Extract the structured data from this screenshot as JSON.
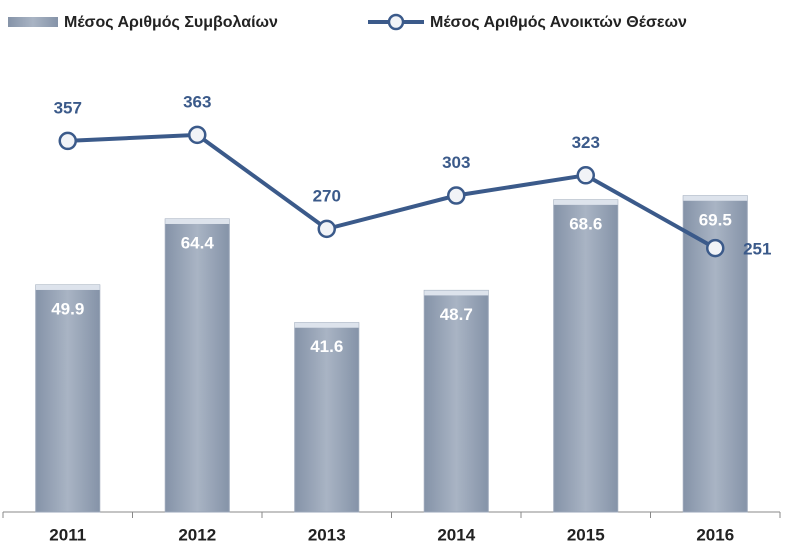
{
  "chart_data": {
    "type": "combo",
    "categories": [
      "2011",
      "2012",
      "2013",
      "2014",
      "2015",
      "2016"
    ],
    "series": [
      {
        "name": "Μέσος Αριθμός Συμβολαίων",
        "type": "bar",
        "color": "#9aa6b8",
        "values": [
          49.9,
          64.4,
          41.6,
          48.7,
          68.6,
          69.5
        ]
      },
      {
        "name": "Μέσος Αριθμός Ανοικτών Θέσεων",
        "type": "line",
        "color": "#3b5a8a",
        "axis": "y2",
        "values": [
          357,
          363,
          270,
          303,
          323,
          251
        ]
      }
    ],
    "ylim": [
      0,
      100
    ],
    "y2lim": [
      -10,
      440
    ],
    "grid": false,
    "legend": "top"
  }
}
